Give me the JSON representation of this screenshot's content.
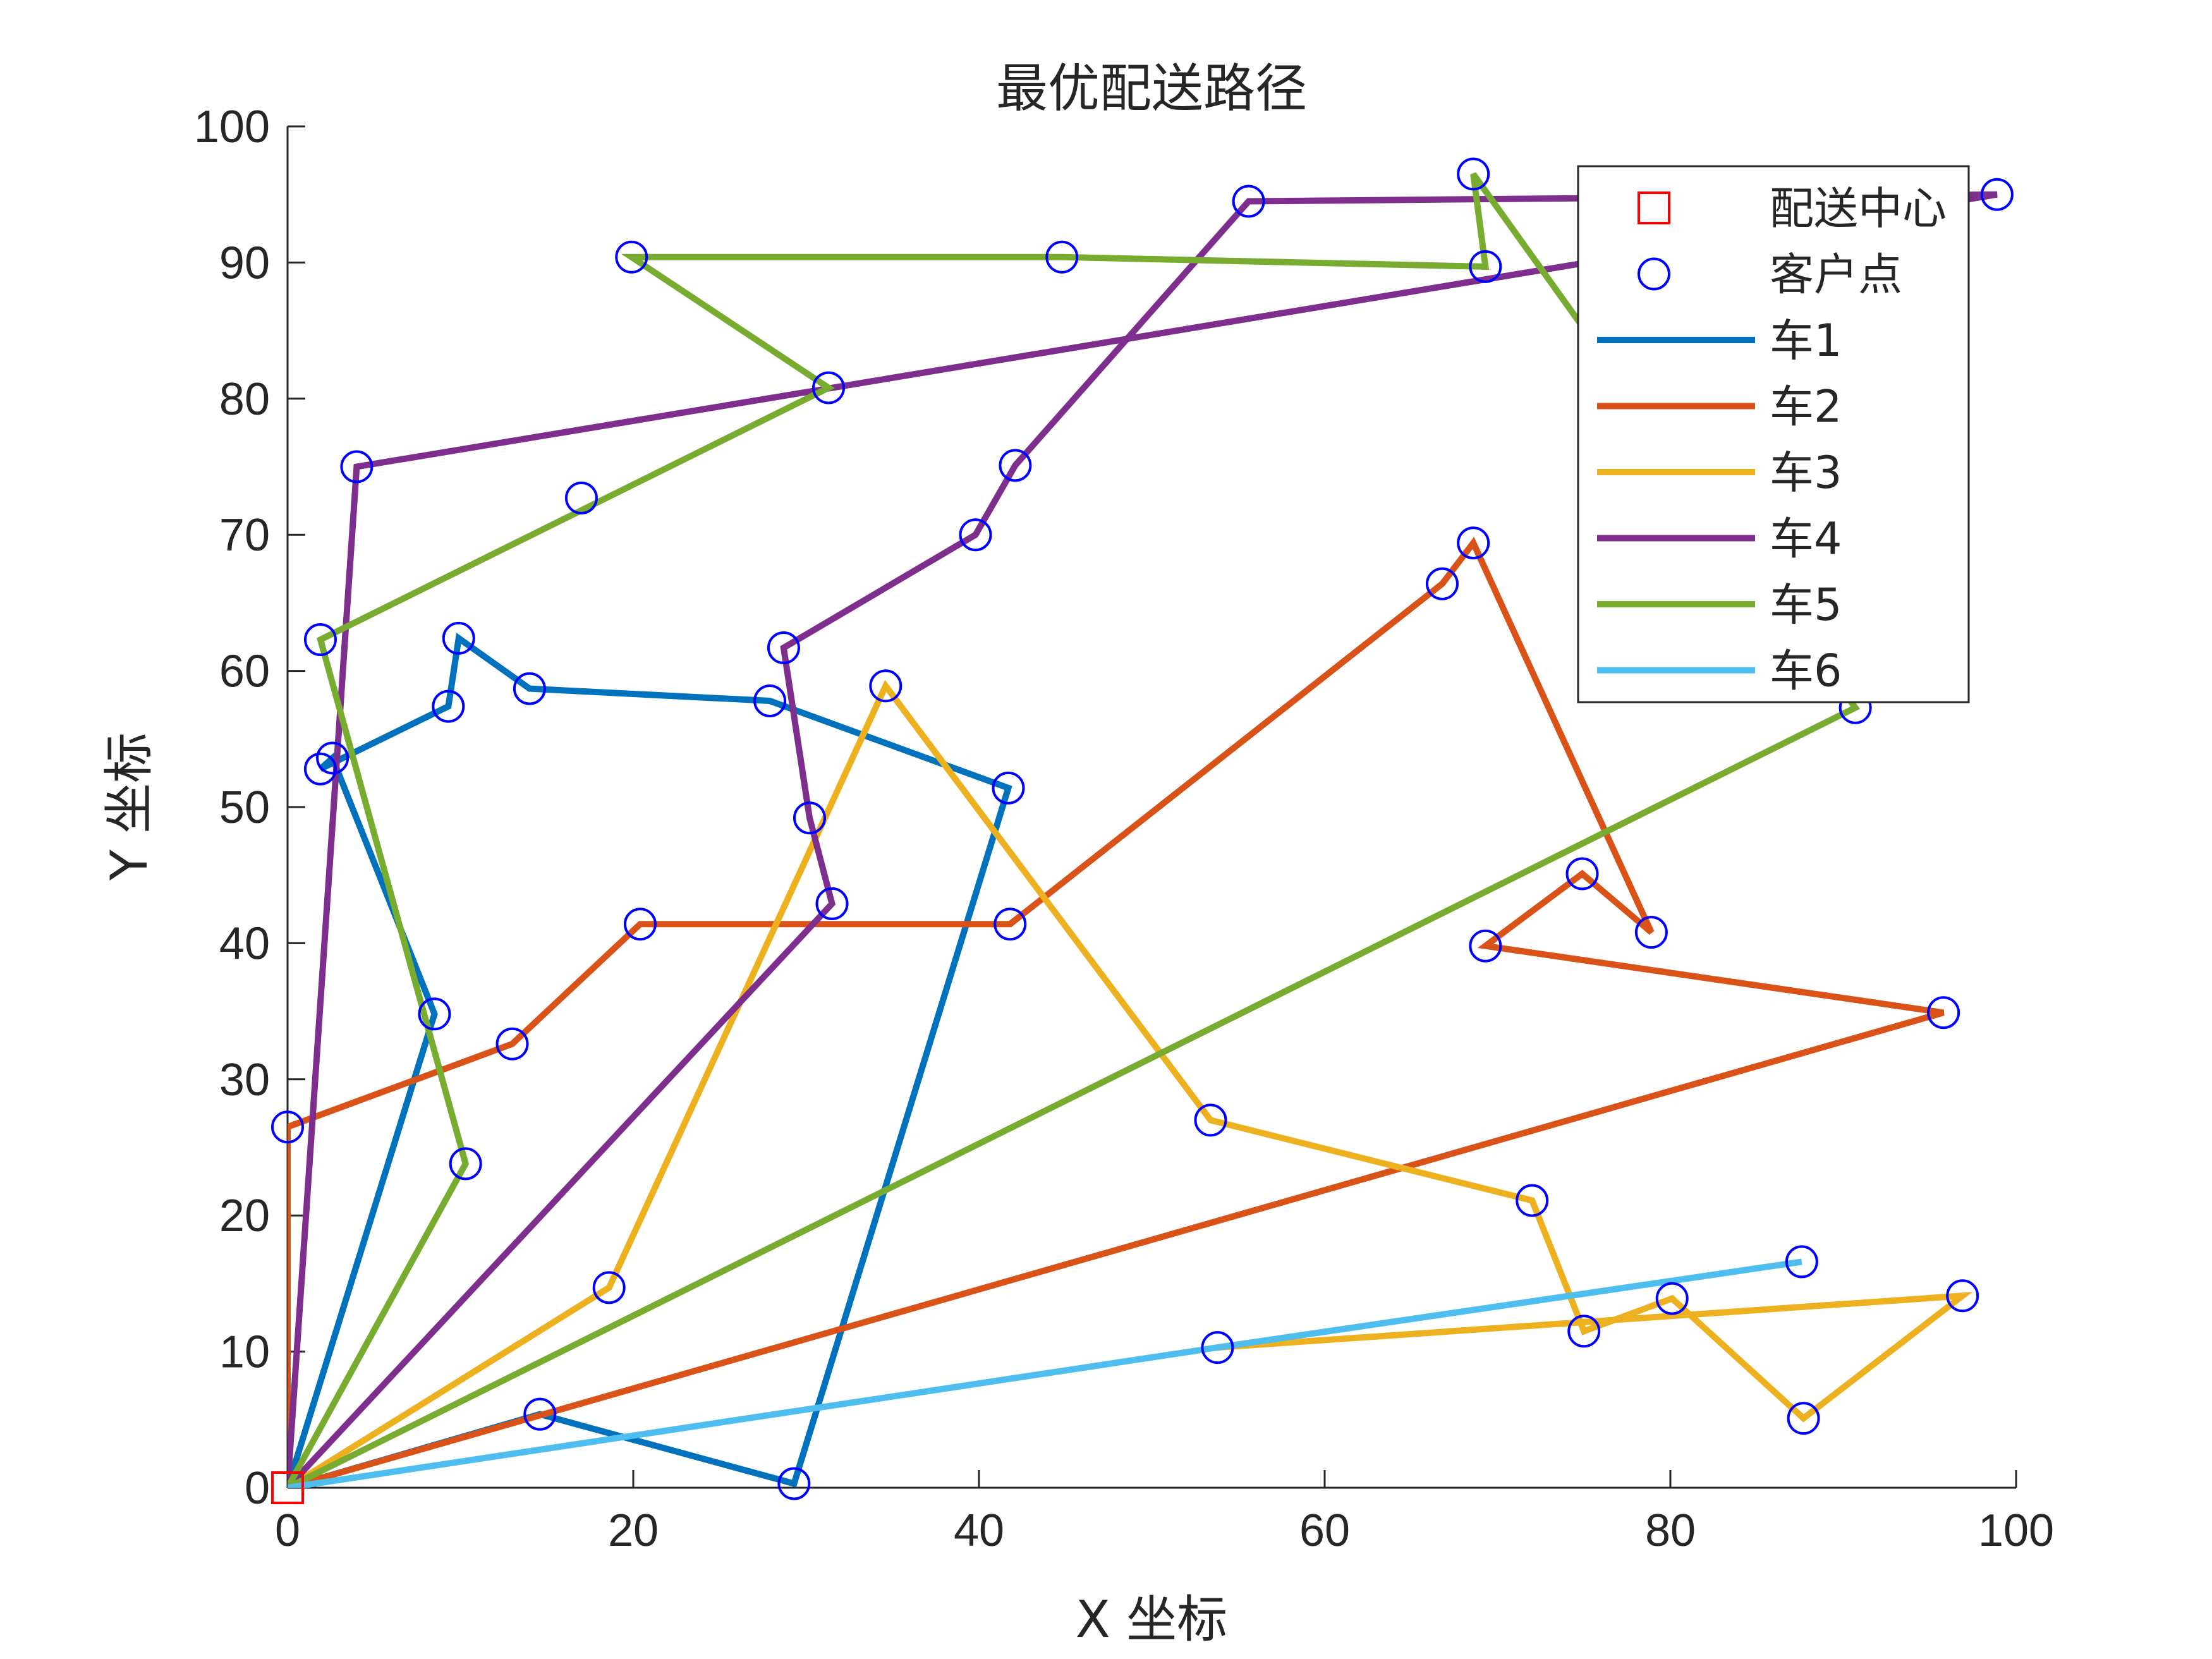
{
  "chart_data": {
    "type": "line",
    "title": "最优配送路径",
    "xlabel": "X 坐标",
    "ylabel": "Y 坐标",
    "xlim": [
      0,
      100
    ],
    "ylim": [
      0,
      100
    ],
    "xticks": [
      0,
      20,
      40,
      60,
      80,
      100
    ],
    "yticks": [
      0,
      10,
      20,
      30,
      40,
      50,
      60,
      70,
      80,
      90,
      100
    ],
    "grid": false,
    "legend_position": "top-right",
    "depot": {
      "name": "配送中心",
      "x": 0,
      "y": 0,
      "color": "#FF0000",
      "marker": "square"
    },
    "customers": {
      "name": "客户点",
      "color": "#0000FF",
      "marker": "circle",
      "points": [
        [
          0,
          26.5
        ],
        [
          14.6,
          5.4
        ],
        [
          29.3,
          0.3
        ],
        [
          8.5,
          34.8
        ],
        [
          2.6,
          53.6
        ],
        [
          1.9,
          52.8
        ],
        [
          9.3,
          57.4
        ],
        [
          9.9,
          62.4
        ],
        [
          14,
          58.7
        ],
        [
          27.9,
          57.8
        ],
        [
          41.7,
          51.4
        ],
        [
          13,
          32.6
        ],
        [
          20.4,
          41.4
        ],
        [
          41.8,
          41.4
        ],
        [
          66.8,
          66.4
        ],
        [
          68.6,
          69.4
        ],
        [
          78.9,
          40.8
        ],
        [
          74.9,
          45.1
        ],
        [
          69.3,
          39.8
        ],
        [
          95.8,
          34.9
        ],
        [
          18.6,
          14.7
        ],
        [
          34.6,
          58.9
        ],
        [
          53.4,
          27
        ],
        [
          72,
          21.1
        ],
        [
          75,
          11.5
        ],
        [
          80.1,
          13.9
        ],
        [
          87.7,
          5.1
        ],
        [
          96.9,
          14.1
        ],
        [
          53.8,
          10.3
        ],
        [
          31.5,
          42.9
        ],
        [
          30.2,
          49.2
        ],
        [
          28.7,
          61.7
        ],
        [
          39.8,
          70
        ],
        [
          42.1,
          75.1
        ],
        [
          55.6,
          94.5
        ],
        [
          98.9,
          95
        ],
        [
          4,
          75
        ],
        [
          31.3,
          80.8
        ],
        [
          10.3,
          23.8
        ],
        [
          1.9,
          62.3
        ],
        [
          17,
          72.7
        ],
        [
          19.9,
          90.4
        ],
        [
          44.8,
          90.4
        ],
        [
          69.3,
          89.7
        ],
        [
          68.6,
          96.5
        ],
        [
          90.7,
          57.3
        ],
        [
          87.6,
          16.6
        ]
      ]
    },
    "series": [
      {
        "name": "车1",
        "color": "#0072BD",
        "points": [
          [
            0,
            0
          ],
          [
            8.5,
            34.8
          ],
          [
            2.6,
            53.6
          ],
          [
            1.9,
            52.8
          ],
          [
            9.3,
            57.4
          ],
          [
            9.9,
            62.4
          ],
          [
            14,
            58.7
          ],
          [
            27.9,
            57.8
          ],
          [
            41.7,
            51.4
          ],
          [
            29.3,
            0.3
          ],
          [
            14.6,
            5.4
          ],
          [
            0,
            0
          ]
        ]
      },
      {
        "name": "车2",
        "color": "#D95319",
        "points": [
          [
            0,
            0
          ],
          [
            0,
            26.5
          ],
          [
            13,
            32.6
          ],
          [
            20.4,
            41.4
          ],
          [
            41.8,
            41.4
          ],
          [
            66.8,
            66.4
          ],
          [
            68.6,
            69.4
          ],
          [
            78.9,
            40.8
          ],
          [
            74.9,
            45.1
          ],
          [
            69.3,
            39.8
          ],
          [
            95.8,
            34.9
          ],
          [
            0,
            0
          ]
        ]
      },
      {
        "name": "车3",
        "color": "#EDB120",
        "points": [
          [
            0,
            0
          ],
          [
            18.6,
            14.7
          ],
          [
            34.6,
            58.9
          ],
          [
            53.4,
            27
          ],
          [
            72,
            21.1
          ],
          [
            75,
            11.5
          ],
          [
            80.1,
            13.9
          ],
          [
            87.7,
            5.1
          ],
          [
            96.9,
            14.1
          ],
          [
            53.8,
            10.3
          ]
        ]
      },
      {
        "name": "车4",
        "color": "#7E2F8E",
        "points": [
          [
            0,
            0
          ],
          [
            31.5,
            42.9
          ],
          [
            30.2,
            49.2
          ],
          [
            28.7,
            61.7
          ],
          [
            39.8,
            70
          ],
          [
            42.1,
            75.1
          ],
          [
            55.6,
            94.5
          ],
          [
            98.9,
            95
          ],
          [
            4,
            75
          ],
          [
            0,
            0
          ]
        ]
      },
      {
        "name": "车5",
        "color": "#77AC30",
        "points": [
          [
            0,
            0
          ],
          [
            10.3,
            23.8
          ],
          [
            1.9,
            62.3
          ],
          [
            31.3,
            80.8
          ],
          [
            19.9,
            90.4
          ],
          [
            44.8,
            90.4
          ],
          [
            69.3,
            89.7
          ],
          [
            68.6,
            96.5
          ],
          [
            90.7,
            57.3
          ],
          [
            0,
            0
          ]
        ]
      },
      {
        "name": "车6",
        "color": "#4DBEEE",
        "points": [
          [
            0,
            0
          ],
          [
            53.8,
            10.3
          ],
          [
            87.6,
            16.6
          ]
        ]
      }
    ]
  }
}
